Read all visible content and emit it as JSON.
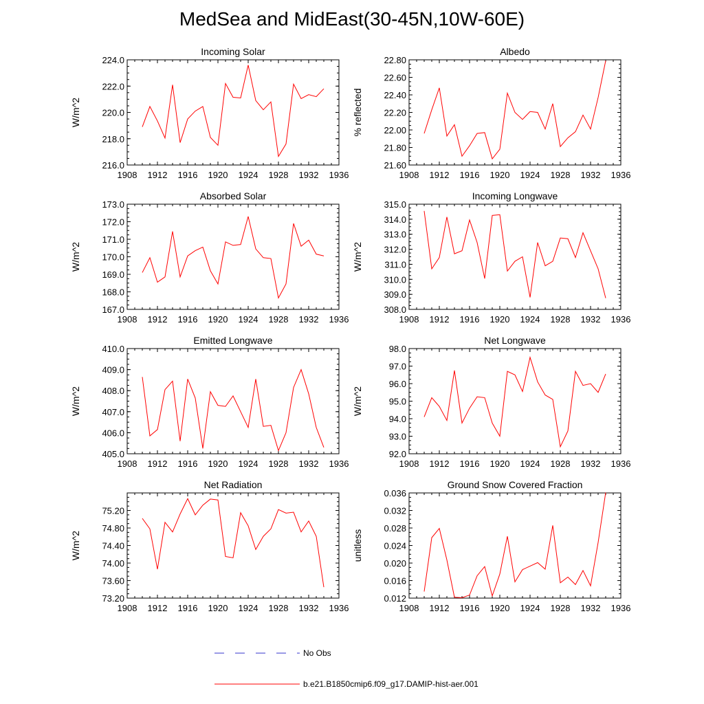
{
  "title": "MedSea and MidEast(30-45N,10W-60E)",
  "legend": {
    "obs_label": "No Obs",
    "obs_color": "#3333cc",
    "model_label": "b.e21.B1850cmip6.f09_g17.DAMIP-hist-aer.001",
    "model_color": "#ff0000"
  },
  "chart_data": [
    {
      "type": "line",
      "title": "Incoming Solar",
      "ylabel": "W/m^2",
      "xlim": [
        1908,
        1936
      ],
      "ylim": [
        216.0,
        224.0
      ],
      "xticks": [
        "1908",
        "1912",
        "1916",
        "1920",
        "1924",
        "1928",
        "1932",
        "1936"
      ],
      "yticks": [
        "216.0",
        "218.0",
        "220.0",
        "222.0",
        "224.0"
      ],
      "x": [
        1910,
        1911,
        1912,
        1913,
        1914,
        1915,
        1916,
        1917,
        1918,
        1919,
        1920,
        1921,
        1922,
        1923,
        1924,
        1925,
        1926,
        1927,
        1928,
        1929,
        1930,
        1931,
        1932,
        1933,
        1934
      ],
      "series": [
        {
          "values": [
            218.9,
            220.45,
            219.35,
            218.05,
            222.1,
            217.7,
            219.5,
            220.1,
            220.45,
            218.1,
            217.5,
            222.2,
            221.15,
            221.1,
            223.6,
            220.9,
            220.2,
            220.8,
            216.65,
            217.6,
            222.15,
            221.05,
            221.35,
            221.2,
            221.8
          ]
        }
      ]
    },
    {
      "type": "line",
      "title": "Albedo",
      "ylabel": "% reflected",
      "xlim": [
        1908,
        1936
      ],
      "ylim": [
        21.6,
        22.8
      ],
      "xticks": [
        "1908",
        "1912",
        "1916",
        "1920",
        "1924",
        "1928",
        "1932",
        "1936"
      ],
      "yticks": [
        "21.60",
        "21.80",
        "22.00",
        "22.20",
        "22.40",
        "22.60",
        "22.80"
      ],
      "x": [
        1910,
        1911,
        1912,
        1913,
        1914,
        1915,
        1916,
        1917,
        1918,
        1919,
        1920,
        1921,
        1922,
        1923,
        1924,
        1925,
        1926,
        1927,
        1928,
        1929,
        1930,
        1931,
        1932,
        1933,
        1934
      ],
      "series": [
        {
          "values": [
            21.96,
            22.23,
            22.48,
            21.93,
            22.06,
            21.7,
            21.82,
            21.96,
            21.97,
            21.67,
            21.78,
            22.42,
            22.2,
            22.12,
            22.21,
            22.2,
            22.01,
            22.3,
            21.81,
            21.91,
            21.98,
            22.17,
            22.01,
            22.37,
            22.79
          ]
        }
      ]
    },
    {
      "type": "line",
      "title": "Absorbed Solar",
      "ylabel": "W/m^2",
      "xlim": [
        1908,
        1936
      ],
      "ylim": [
        167.0,
        173.0
      ],
      "xticks": [
        "1908",
        "1912",
        "1916",
        "1920",
        "1924",
        "1928",
        "1932",
        "1936"
      ],
      "yticks": [
        "167.0",
        "168.0",
        "169.0",
        "170.0",
        "171.0",
        "172.0",
        "173.0"
      ],
      "x": [
        1910,
        1911,
        1912,
        1913,
        1914,
        1915,
        1916,
        1917,
        1918,
        1919,
        1920,
        1921,
        1922,
        1923,
        1924,
        1925,
        1926,
        1927,
        1928,
        1929,
        1930,
        1931,
        1932,
        1933,
        1934
      ],
      "series": [
        {
          "values": [
            169.1,
            169.95,
            168.55,
            168.85,
            171.45,
            168.85,
            170.05,
            170.35,
            170.55,
            169.2,
            168.45,
            170.85,
            170.65,
            170.7,
            172.3,
            170.45,
            169.95,
            169.9,
            167.65,
            168.45,
            171.9,
            170.6,
            170.95,
            170.15,
            170.05
          ]
        }
      ]
    },
    {
      "type": "line",
      "title": "Incoming Longwave",
      "ylabel": "W/m^2",
      "xlim": [
        1908,
        1936
      ],
      "ylim": [
        308.0,
        315.0
      ],
      "xticks": [
        "1908",
        "1912",
        "1916",
        "1920",
        "1924",
        "1928",
        "1932",
        "1936"
      ],
      "yticks": [
        "308.0",
        "309.0",
        "310.0",
        "311.0",
        "312.0",
        "313.0",
        "314.0",
        "315.0"
      ],
      "x": [
        1910,
        1911,
        1912,
        1913,
        1914,
        1915,
        1916,
        1917,
        1918,
        1919,
        1920,
        1921,
        1922,
        1923,
        1924,
        1925,
        1926,
        1927,
        1928,
        1929,
        1930,
        1931,
        1932,
        1933,
        1934
      ],
      "series": [
        {
          "values": [
            314.55,
            310.7,
            311.45,
            314.15,
            311.7,
            311.9,
            313.95,
            312.45,
            310.05,
            314.25,
            314.3,
            310.55,
            311.2,
            311.5,
            308.8,
            312.45,
            310.9,
            311.2,
            312.75,
            312.7,
            311.45,
            313.1,
            311.9,
            310.7,
            308.75
          ]
        }
      ]
    },
    {
      "type": "line",
      "title": "Emitted Longwave",
      "ylabel": "W/m^2",
      "xlim": [
        1908,
        1936
      ],
      "ylim": [
        405.0,
        410.0
      ],
      "xticks": [
        "1908",
        "1912",
        "1916",
        "1920",
        "1924",
        "1928",
        "1932",
        "1936"
      ],
      "yticks": [
        "405.0",
        "406.0",
        "407.0",
        "408.0",
        "409.0",
        "410.0"
      ],
      "x": [
        1910,
        1911,
        1912,
        1913,
        1914,
        1915,
        1916,
        1917,
        1918,
        1919,
        1920,
        1921,
        1922,
        1923,
        1924,
        1925,
        1926,
        1927,
        1928,
        1929,
        1930,
        1931,
        1932,
        1933,
        1934
      ],
      "series": [
        {
          "values": [
            408.65,
            405.85,
            406.15,
            408.05,
            408.45,
            405.6,
            408.55,
            407.65,
            405.25,
            407.95,
            407.3,
            407.25,
            407.75,
            407.0,
            406.25,
            408.55,
            406.3,
            406.35,
            405.15,
            406.0,
            408.15,
            409.0,
            407.85,
            406.25,
            405.3
          ]
        }
      ]
    },
    {
      "type": "line",
      "title": "Net Longwave",
      "ylabel": "W/m^2",
      "xlim": [
        1908,
        1936
      ],
      "ylim": [
        92.0,
        98.0
      ],
      "xticks": [
        "1908",
        "1912",
        "1916",
        "1920",
        "1924",
        "1928",
        "1932",
        "1936"
      ],
      "yticks": [
        "92.0",
        "93.0",
        "94.0",
        "95.0",
        "96.0",
        "97.0",
        "98.0"
      ],
      "x": [
        1910,
        1911,
        1912,
        1913,
        1914,
        1915,
        1916,
        1917,
        1918,
        1919,
        1920,
        1921,
        1922,
        1923,
        1924,
        1925,
        1926,
        1927,
        1928,
        1929,
        1930,
        1931,
        1932,
        1933,
        1934
      ],
      "series": [
        {
          "values": [
            94.1,
            95.2,
            94.7,
            93.9,
            96.75,
            93.75,
            94.6,
            95.25,
            95.2,
            93.75,
            93.0,
            96.7,
            96.5,
            95.55,
            97.5,
            96.1,
            95.35,
            95.1,
            92.4,
            93.3,
            96.7,
            95.9,
            96.0,
            95.5,
            96.55
          ]
        }
      ]
    },
    {
      "type": "line",
      "title": "Net Radiation",
      "ylabel": "W/m^2",
      "xlim": [
        1908,
        1936
      ],
      "ylim": [
        73.2,
        75.6
      ],
      "xticks": [
        "1908",
        "1912",
        "1916",
        "1920",
        "1924",
        "1928",
        "1932",
        "1936"
      ],
      "yticks": [
        "73.20",
        "73.60",
        "74.00",
        "74.40",
        "74.80",
        "75.20"
      ],
      "x": [
        1910,
        1911,
        1912,
        1913,
        1914,
        1915,
        1916,
        1917,
        1918,
        1919,
        1920,
        1921,
        1922,
        1923,
        1924,
        1925,
        1926,
        1927,
        1928,
        1929,
        1930,
        1931,
        1932,
        1933,
        1934
      ],
      "series": [
        {
          "values": [
            75.02,
            74.78,
            73.86,
            74.93,
            74.71,
            75.12,
            75.47,
            75.1,
            75.32,
            75.46,
            75.44,
            74.15,
            74.12,
            75.15,
            74.85,
            74.31,
            74.61,
            74.78,
            75.22,
            75.14,
            75.16,
            74.71,
            74.96,
            74.61,
            73.45
          ]
        }
      ]
    },
    {
      "type": "line",
      "title": "Ground Snow Covered Fraction",
      "ylabel": "unitless",
      "xlim": [
        1908,
        1936
      ],
      "ylim": [
        0.012,
        0.036
      ],
      "xticks": [
        "1908",
        "1912",
        "1916",
        "1920",
        "1924",
        "1928",
        "1932",
        "1936"
      ],
      "yticks": [
        "0.012",
        "0.016",
        "0.020",
        "0.024",
        "0.028",
        "0.032",
        "0.036"
      ],
      "x": [
        1910,
        1911,
        1912,
        1913,
        1914,
        1915,
        1916,
        1917,
        1918,
        1919,
        1920,
        1921,
        1922,
        1923,
        1924,
        1925,
        1926,
        1927,
        1928,
        1929,
        1930,
        1931,
        1932,
        1933,
        1934
      ],
      "series": [
        {
          "values": [
            0.0135,
            0.0258,
            0.0279,
            0.0207,
            0.0122,
            0.0121,
            0.0127,
            0.0171,
            0.0192,
            0.0125,
            0.0175,
            0.0261,
            0.0157,
            0.0185,
            0.0193,
            0.0201,
            0.0186,
            0.0286,
            0.0155,
            0.0168,
            0.0151,
            0.0183,
            0.0148,
            0.0247,
            0.0361
          ]
        }
      ]
    }
  ]
}
